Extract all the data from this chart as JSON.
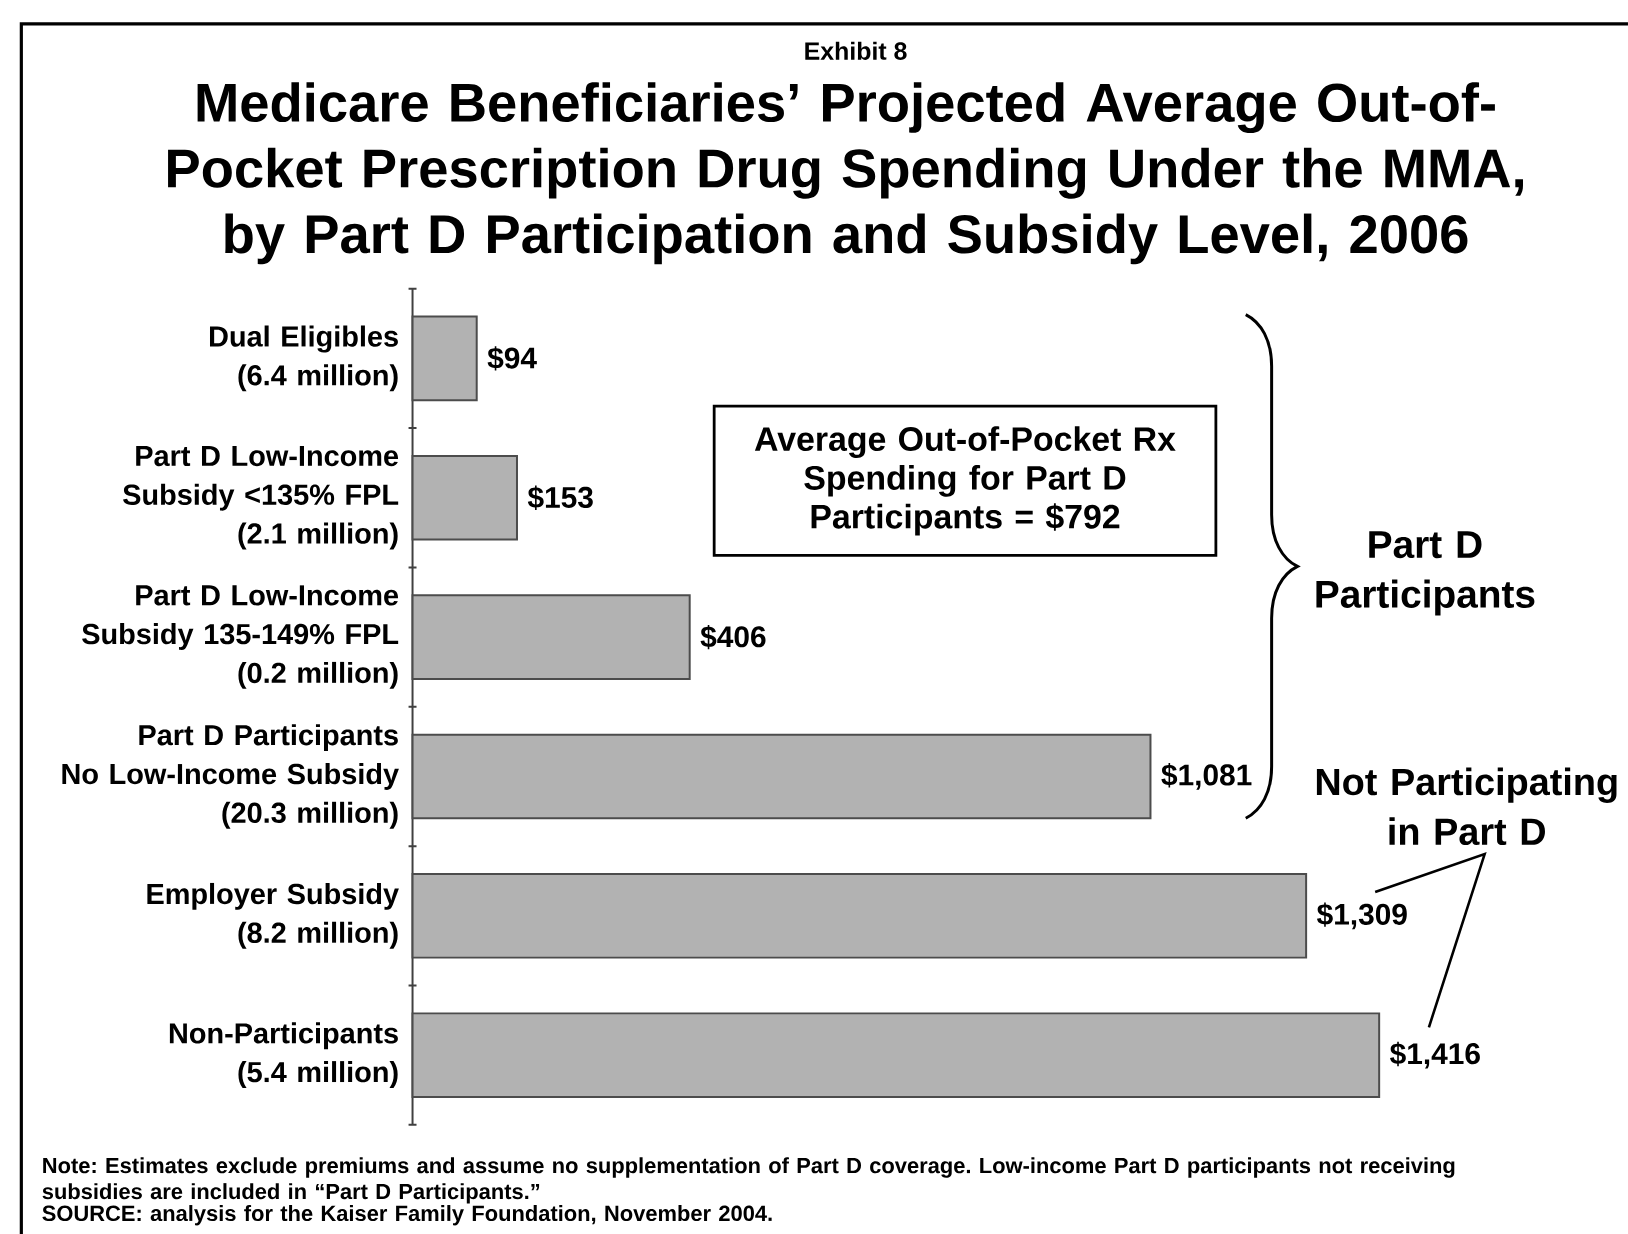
{
  "chart_data": {
    "type": "bar",
    "orientation": "horizontal",
    "title": "Medicare Beneficiaries’ Projected Average Out-of-\nPocket Prescription Drug Spending Under the MMA,\nby Part D Participation and Subsidy Level, 2006",
    "categories": [
      "Dual Eligibles\n(6.4 million)",
      "Part D Low-Income\nSubsidy <135% FPL\n(2.1 million)",
      "Part D Low-Income\nSubsidy 135-149% FPL\n(0.2 million)",
      "Part D Participants\nNo Low-Income Subsidy\n(20.3 million)",
      "Employer Subsidy\n(8.2 million)",
      "Non-Participants\n(5.4 million)"
    ],
    "values": [
      94,
      153,
      406,
      1081,
      1309,
      1416
    ],
    "value_labels": [
      "$94",
      "$153",
      "$406",
      "$1,081",
      "$1,309",
      "$1,416"
    ],
    "color": "#b2b2b2",
    "annotations": [
      "Exhibit 8",
      "Average Out-of-Pocket Rx\nSpending for Part D\nParticipants = $792",
      "Part D\nParticipants",
      "Not Participating\nin Part D",
      "Note: Estimates exclude premiums and assume no supplementation of Part D coverage. Low-income Part D participants not receiving subsidies are included in “Part D Participants.”",
      "SOURCE: analysis for the Kaiser Family Foundation, November 2004."
    ]
  }
}
